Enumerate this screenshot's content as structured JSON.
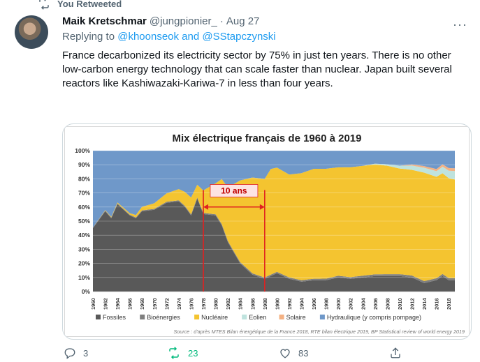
{
  "retweet": {
    "label": "You Retweeted"
  },
  "author": {
    "name": "Maik Kretschmar",
    "handle": "@jungpionier_",
    "separator": "·",
    "date": "Aug 27"
  },
  "reply": {
    "prefix": "Replying to ",
    "mention1": "@khoonseok",
    "and": " and ",
    "mention2": "@SStapczynski"
  },
  "tweet": {
    "text": "France decarbonized its electricity sector by 75% in just ten years. There is no other low-carbon energy technology that can scale faster than nuclear. Japan built several reactors like Kashiwazaki-Kariwa-7 in less than four years."
  },
  "more_label": "···",
  "chart_data": {
    "type": "area",
    "title": "Mix électrique français de 1960 à 2019",
    "source": "Source : d'après MTES Bilan énergétique de la France 2018, RTE bilan électrique 2019, BP Statistical review of world energy 2019",
    "annotation": "10 ans",
    "annotation_range": [
      1978,
      1988
    ],
    "ylim": [
      0,
      100
    ],
    "yticks": [
      "0%",
      "10%",
      "20%",
      "30%",
      "40%",
      "50%",
      "60%",
      "70%",
      "80%",
      "90%",
      "100%"
    ],
    "xlim": [
      1960,
      2019
    ],
    "xticks": [
      "1960",
      "1962",
      "1964",
      "1966",
      "1968",
      "1970",
      "1972",
      "1974",
      "1976",
      "1978",
      "1980",
      "1982",
      "1984",
      "1986",
      "1988",
      "1990",
      "1992",
      "1994",
      "1996",
      "1998",
      "2000",
      "2002",
      "2004",
      "2006",
      "2008",
      "2010",
      "2012",
      "2014",
      "2016",
      "2018"
    ],
    "legend_position": "bottom",
    "series": [
      {
        "name": "Fossiles",
        "color": "#595959",
        "x": [
          1960,
          1962,
          1963,
          1964,
          1966,
          1967,
          1968,
          1970,
          1972,
          1974,
          1975,
          1976,
          1977,
          1978,
          1980,
          1981,
          1982,
          1984,
          1986,
          1988,
          1990,
          1991,
          1992,
          1994,
          1996,
          1998,
          2000,
          2002,
          2004,
          2006,
          2008,
          2010,
          2012,
          2014,
          2015,
          2016,
          2017,
          2018,
          2019
        ],
        "values": [
          45,
          57,
          52,
          62,
          54,
          52,
          57,
          58,
          63,
          64,
          60,
          54,
          66,
          55,
          54,
          47,
          35,
          20,
          12,
          9,
          13,
          11,
          9,
          7,
          8,
          8,
          10,
          9,
          10,
          11,
          11,
          11,
          10,
          6,
          7,
          8,
          11,
          8,
          8
        ]
      },
      {
        "name": "Bioénergies",
        "color": "#7f7f7f",
        "x": [
          1960,
          2019
        ],
        "values": [
          0.5,
          1.5
        ]
      },
      {
        "name": "Nucléaire",
        "color": "#f4c430",
        "x": [
          1960,
          1966,
          1970,
          1972,
          1974,
          1976,
          1977,
          1978,
          1980,
          1981,
          1982,
          1984,
          1986,
          1988,
          1989,
          1990,
          1992,
          1994,
          1996,
          1998,
          2000,
          2002,
          2004,
          2006,
          2008,
          2010,
          2012,
          2014,
          2016,
          2018,
          2019
        ],
        "values": [
          0,
          1,
          4,
          6,
          8,
          12,
          9,
          16,
          22,
          32,
          38,
          58,
          68,
          70,
          75,
          74,
          73,
          76,
          78,
          78,
          77,
          78,
          78,
          78,
          77,
          75,
          75,
          77,
          72,
          71,
          70
        ]
      },
      {
        "name": "Eolien",
        "color": "#bfe3de",
        "x": [
          1960,
          2004,
          2008,
          2012,
          2016,
          2019
        ],
        "values": [
          0,
          0,
          1,
          3,
          4,
          6
        ]
      },
      {
        "name": "Solaire",
        "color": "#f4b183",
        "x": [
          1960,
          2010,
          2012,
          2016,
          2019
        ],
        "values": [
          0,
          0,
          0.8,
          1.5,
          2
        ]
      },
      {
        "name": "Hydraulique (y compris pompage)",
        "color": "#6f98c9",
        "x": [
          1960,
          2019
        ],
        "values": [
          55,
          10
        ]
      }
    ]
  },
  "actions": {
    "replies": "3",
    "retweets": "23",
    "likes": "83"
  }
}
